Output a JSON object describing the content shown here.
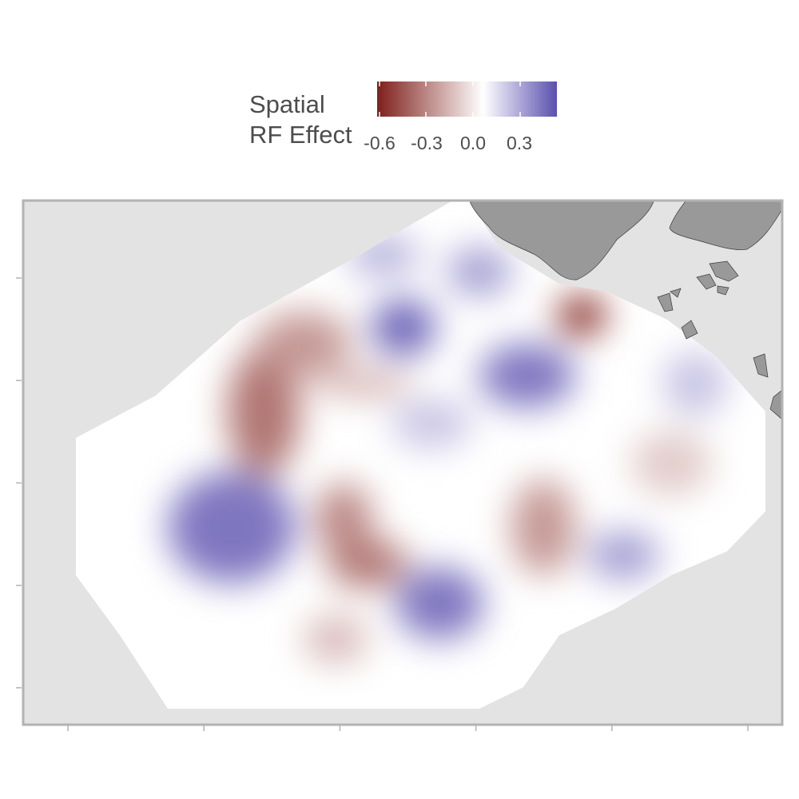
{
  "legend": {
    "title_line1": "Spatial",
    "title_line2": "RF Effect",
    "breaks": [
      "-0.6",
      "-0.3",
      "0.0",
      "0.3"
    ],
    "colors": {
      "low": "#7f1f1a",
      "mid": "#ffffff",
      "high": "#5a4fae"
    },
    "range": [
      -0.65,
      0.45
    ]
  },
  "map": {
    "panel_background": "#e3e3e3",
    "land_color": "#999999",
    "x_ticks": 6,
    "y_ticks": 5
  },
  "chart_data": {
    "type": "heatmap",
    "title": "",
    "xlabel": "",
    "ylabel": "",
    "legend_title": "Spatial RF Effect",
    "value_range": [
      -0.65,
      0.45
    ],
    "hotspots": [
      {
        "value": -0.65
      },
      {
        "value": -0.4
      },
      {
        "value": -0.4
      },
      {
        "value": -0.35
      },
      {
        "value": -0.3
      },
      {
        "value": -0.3
      },
      {
        "value": -0.25
      },
      {
        "value": -0.2
      },
      {
        "value": -0.15
      },
      {
        "value": 0.35
      },
      {
        "value": 0.35
      },
      {
        "value": 0.4
      },
      {
        "value": 0.35
      },
      {
        "value": 0.25
      },
      {
        "value": 0.25
      },
      {
        "value": 0.2
      },
      {
        "value": 0.15
      },
      {
        "value": 0.15
      }
    ]
  }
}
